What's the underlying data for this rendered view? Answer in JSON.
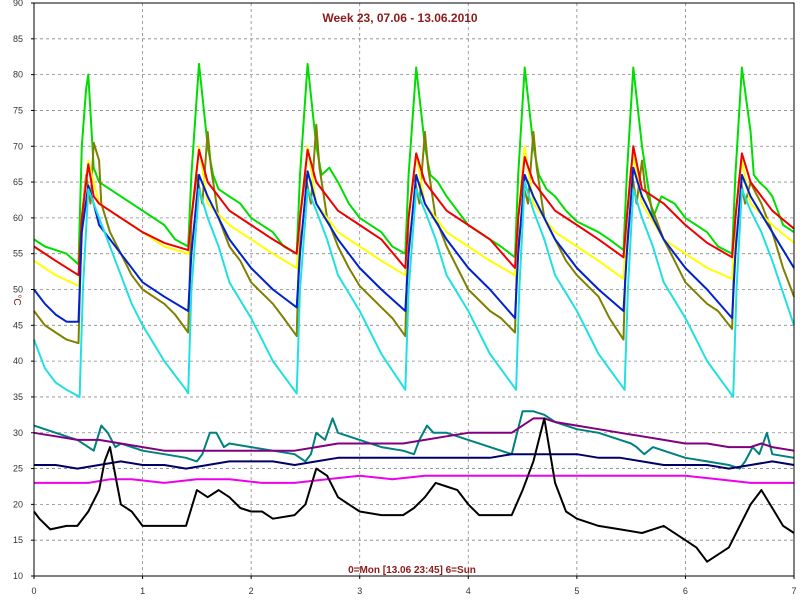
{
  "chart_data": {
    "type": "line",
    "title": "Week 23, 07.06 - 13.06.2010",
    "ylabel": "°C",
    "xnote": "0=Mon [13.06 23:45] 6=Sun",
    "xlim": [
      0,
      7
    ],
    "ylim": [
      10,
      90
    ],
    "xticks": [
      0,
      1,
      2,
      3,
      4,
      5,
      6,
      7
    ],
    "yticks": [
      10,
      15,
      20,
      25,
      30,
      35,
      40,
      45,
      50,
      55,
      60,
      65,
      70,
      75,
      80,
      85,
      90
    ],
    "grid": true,
    "series": [
      {
        "color": "#00dd00",
        "x": [
          0,
          0.1,
          0.2,
          0.3,
          0.41,
          0.44,
          0.48,
          0.5,
          0.55,
          0.6,
          0.8,
          1.0,
          1.2,
          1.3,
          1.42,
          1.45,
          1.52,
          1.6,
          1.65,
          1.7,
          1.8,
          1.9,
          2.0,
          2.2,
          2.3,
          2.42,
          2.45,
          2.52,
          2.6,
          2.65,
          2.72,
          2.8,
          2.9,
          3.0,
          3.2,
          3.3,
          3.42,
          3.45,
          3.52,
          3.6,
          3.65,
          3.72,
          3.8,
          3.9,
          4.0,
          4.2,
          4.3,
          4.43,
          4.46,
          4.52,
          4.6,
          4.65,
          4.72,
          4.8,
          4.9,
          5.0,
          5.2,
          5.3,
          5.43,
          5.46,
          5.52,
          5.6,
          5.65,
          5.7,
          5.78,
          5.9,
          6.0,
          6.2,
          6.3,
          6.43,
          6.46,
          6.52,
          6.6,
          6.63,
          6.68,
          6.75,
          6.8,
          6.85,
          6.9,
          6.95,
          7.0
        ],
        "y": [
          57,
          56,
          55.5,
          55,
          53.5,
          70,
          78,
          80,
          67,
          65,
          63,
          61,
          59,
          57,
          56,
          66,
          81.5,
          70,
          66,
          64,
          63,
          62,
          60,
          58,
          56,
          55,
          66,
          81.5,
          70,
          66,
          67,
          65,
          62,
          60,
          58,
          56,
          55,
          66,
          81,
          70,
          66,
          65,
          63,
          61,
          59,
          57,
          56,
          54.5,
          66,
          81,
          70,
          66,
          64,
          63,
          61,
          59.5,
          58,
          57,
          55.5,
          66,
          81,
          70,
          65,
          60,
          63,
          62,
          60,
          58,
          56,
          55,
          66,
          81,
          72,
          66,
          65,
          64,
          63,
          61,
          59,
          58.5,
          58
        ]
      },
      {
        "color": "#808000",
        "x": [
          0,
          0.1,
          0.2,
          0.3,
          0.41,
          0.44,
          0.48,
          0.52,
          0.55,
          0.6,
          0.62,
          0.7,
          0.8,
          0.9,
          1.0,
          1.2,
          1.3,
          1.42,
          1.45,
          1.5,
          1.55,
          1.6,
          1.63,
          1.7,
          1.8,
          1.9,
          2.0,
          2.2,
          2.3,
          2.42,
          2.45,
          2.5,
          2.55,
          2.6,
          2.63,
          2.7,
          2.8,
          2.9,
          3.0,
          3.2,
          3.3,
          3.42,
          3.45,
          3.5,
          3.55,
          3.6,
          3.63,
          3.7,
          3.8,
          3.9,
          4.0,
          4.2,
          4.3,
          4.43,
          4.46,
          4.5,
          4.55,
          4.6,
          4.63,
          4.7,
          4.8,
          4.9,
          5.0,
          5.2,
          5.3,
          5.43,
          5.46,
          5.5,
          5.55,
          5.6,
          5.63,
          5.7,
          5.8,
          5.9,
          6.0,
          6.2,
          6.3,
          6.43,
          6.46,
          6.5,
          6.55,
          6.6,
          6.63,
          6.7,
          6.8,
          6.9,
          6.95,
          7.0
        ],
        "y": [
          47,
          45,
          44,
          43,
          42.5,
          60,
          66,
          62,
          70.5,
          68,
          62,
          58,
          55,
          52,
          50,
          48,
          46.5,
          44,
          60,
          66,
          62,
          72,
          67,
          60,
          56,
          54,
          51,
          48,
          46,
          43.5,
          60,
          66,
          62,
          73,
          67,
          60,
          56,
          53,
          50.5,
          47.5,
          46,
          43.5,
          60,
          66,
          62,
          72,
          67,
          60,
          56,
          53,
          50,
          47,
          46,
          44,
          60,
          65,
          62,
          72,
          67,
          60,
          57,
          54,
          52,
          49,
          46,
          43,
          60,
          67,
          62,
          68,
          64,
          61,
          57,
          54,
          51,
          48,
          47,
          44.5,
          60,
          66,
          62,
          65,
          64,
          62,
          58,
          53,
          51,
          49
        ]
      },
      {
        "color": "#ffff00",
        "x": [
          0,
          0.2,
          0.41,
          0.44,
          0.5,
          0.6,
          0.8,
          1.0,
          1.2,
          1.42,
          1.45,
          1.52,
          1.6,
          1.8,
          2.0,
          2.2,
          2.42,
          2.45,
          2.52,
          2.6,
          2.8,
          3.0,
          3.2,
          3.42,
          3.45,
          3.52,
          3.6,
          3.8,
          4.0,
          4.2,
          4.43,
          4.46,
          4.52,
          4.6,
          4.8,
          5.0,
          5.2,
          5.43,
          5.46,
          5.52,
          5.6,
          5.8,
          6.0,
          6.2,
          6.43,
          6.46,
          6.52,
          6.6,
          6.8,
          7.0
        ],
        "y": [
          54,
          52,
          50.5,
          60,
          68,
          62,
          60,
          58,
          56,
          55,
          60,
          70,
          62,
          59,
          57,
          55,
          53,
          60,
          70,
          62,
          58,
          56,
          54,
          52,
          60,
          69,
          62,
          58,
          56,
          54,
          52,
          60,
          70,
          62,
          58,
          56,
          54,
          51.5,
          60,
          69,
          62,
          57,
          55,
          53,
          51.5,
          60,
          68,
          62,
          59,
          56.5
        ]
      },
      {
        "color": "#ee0000",
        "x": [
          0,
          0.2,
          0.41,
          0.44,
          0.5,
          0.55,
          0.6,
          0.8,
          1.0,
          1.2,
          1.42,
          1.45,
          1.52,
          1.6,
          1.8,
          2.0,
          2.2,
          2.42,
          2.45,
          2.52,
          2.6,
          2.8,
          3.0,
          3.2,
          3.42,
          3.45,
          3.52,
          3.6,
          3.8,
          4.0,
          4.2,
          4.43,
          4.46,
          4.52,
          4.6,
          4.8,
          5.0,
          5.2,
          5.43,
          5.46,
          5.52,
          5.6,
          5.8,
          6.0,
          6.2,
          6.43,
          6.46,
          6.52,
          6.6,
          6.8,
          7.0
        ],
        "y": [
          56,
          54,
          52,
          60,
          67.5,
          63,
          62,
          60,
          58,
          56.5,
          55.5,
          60,
          69.5,
          65,
          61,
          59,
          57,
          55,
          60,
          69.5,
          65,
          61,
          59,
          57,
          53,
          60,
          69,
          65,
          61,
          59,
          57,
          53,
          60,
          68.5,
          65,
          61,
          59,
          57,
          54.5,
          60,
          70,
          64,
          62,
          59,
          56.5,
          54.5,
          60,
          69,
          65,
          61,
          58.5
        ]
      },
      {
        "color": "#0022cc",
        "x": [
          0,
          0.1,
          0.2,
          0.3,
          0.41,
          0.44,
          0.5,
          0.55,
          0.6,
          0.8,
          1.0,
          1.2,
          1.42,
          1.45,
          1.52,
          1.6,
          1.8,
          2.0,
          2.2,
          2.42,
          2.45,
          2.52,
          2.6,
          2.8,
          3.0,
          3.2,
          3.42,
          3.45,
          3.52,
          3.6,
          3.8,
          4.0,
          4.2,
          4.43,
          4.46,
          4.52,
          4.6,
          4.8,
          5.0,
          5.2,
          5.43,
          5.46,
          5.52,
          5.6,
          5.8,
          6.0,
          6.2,
          6.43,
          6.46,
          6.52,
          6.6,
          6.8,
          7.0
        ],
        "y": [
          50,
          48,
          46.5,
          45.5,
          45.5,
          58,
          64.5,
          62,
          59,
          55,
          51,
          49,
          47,
          55,
          66,
          63,
          57,
          53,
          50,
          47.5,
          55,
          66.5,
          62,
          57,
          53,
          50,
          47,
          55,
          66,
          62,
          57,
          53,
          50,
          46,
          55,
          66,
          63,
          57,
          53,
          50,
          47,
          55,
          67,
          63,
          57,
          53,
          50,
          46,
          55,
          66,
          63,
          58,
          53
        ]
      },
      {
        "color": "#22e0e0",
        "x": [
          0,
          0.1,
          0.2,
          0.3,
          0.42,
          0.45,
          0.5,
          0.6,
          0.7,
          0.8,
          0.9,
          1.0,
          1.2,
          1.4,
          1.42,
          1.45,
          1.52,
          1.6,
          1.7,
          1.8,
          2.0,
          2.2,
          2.42,
          2.45,
          2.52,
          2.6,
          2.7,
          2.8,
          3.0,
          3.2,
          3.42,
          3.45,
          3.52,
          3.6,
          3.7,
          3.8,
          4.0,
          4.2,
          4.44,
          4.47,
          4.52,
          4.6,
          4.7,
          4.8,
          5.0,
          5.2,
          5.44,
          5.47,
          5.52,
          5.6,
          5.7,
          5.8,
          6.0,
          6.2,
          6.44,
          6.47,
          6.52,
          6.6,
          6.7,
          6.8,
          7.0
        ],
        "y": [
          43,
          39,
          37,
          36,
          35,
          50,
          64,
          60,
          56,
          52,
          48,
          45,
          40,
          36,
          35.5,
          50,
          64,
          60,
          56,
          51,
          46,
          40,
          35.5,
          50,
          64,
          61,
          57,
          52,
          47,
          41,
          36,
          50,
          64,
          61,
          57,
          52,
          47,
          41,
          36,
          50,
          65,
          61,
          57,
          52,
          47,
          41,
          36,
          50,
          64,
          60,
          56,
          51,
          46,
          40,
          35,
          50,
          64,
          61,
          58,
          54,
          45
        ]
      },
      {
        "color": "#008080",
        "x": [
          0,
          0.2,
          0.4,
          0.5,
          0.55,
          0.62,
          0.68,
          0.75,
          0.8,
          0.9,
          1.0,
          1.2,
          1.4,
          1.5,
          1.55,
          1.62,
          1.68,
          1.75,
          1.8,
          2.0,
          2.2,
          2.4,
          2.5,
          2.55,
          2.6,
          2.68,
          2.75,
          2.8,
          3.0,
          3.2,
          3.4,
          3.5,
          3.55,
          3.62,
          3.68,
          3.8,
          4.0,
          4.2,
          4.4,
          4.45,
          4.5,
          4.6,
          4.7,
          4.8,
          5.0,
          5.2,
          5.4,
          5.5,
          5.55,
          5.62,
          5.7,
          5.8,
          6.0,
          6.2,
          6.4,
          6.5,
          6.55,
          6.62,
          6.68,
          6.75,
          6.8,
          7.0
        ],
        "y": [
          31,
          30,
          29,
          28,
          27.5,
          31,
          30,
          28,
          28.5,
          28,
          27.5,
          27,
          26.5,
          26,
          27,
          30,
          30,
          28,
          28.5,
          28,
          27.5,
          27,
          26,
          27,
          30,
          29,
          32,
          30,
          29,
          28,
          27.5,
          27,
          29,
          31,
          30,
          30,
          29,
          28,
          27,
          30,
          33,
          33,
          32.5,
          31.5,
          30.5,
          30,
          29,
          28.5,
          28,
          27,
          28,
          27.5,
          26.5,
          26,
          25.5,
          25,
          26,
          28,
          27,
          30,
          27,
          26.5
        ]
      },
      {
        "color": "#800080",
        "x": [
          0,
          0.2,
          0.4,
          0.6,
          0.8,
          1.0,
          1.2,
          1.4,
          1.6,
          1.8,
          2.0,
          2.2,
          2.4,
          2.6,
          2.8,
          3.0,
          3.2,
          3.4,
          3.6,
          3.8,
          4.0,
          4.2,
          4.4,
          4.5,
          4.6,
          4.7,
          4.8,
          5.0,
          5.2,
          5.4,
          5.6,
          5.8,
          6.0,
          6.2,
          6.4,
          6.6,
          6.7,
          6.8,
          7.0
        ],
        "y": [
          30,
          29.5,
          29,
          29,
          28.5,
          28,
          27.5,
          27.5,
          27.5,
          27.5,
          27.5,
          27.5,
          27.5,
          28,
          28.5,
          28.5,
          28.5,
          28.5,
          29,
          29.5,
          30,
          30,
          30,
          31,
          32,
          32,
          31.5,
          31,
          30.5,
          30,
          29.5,
          29,
          28.5,
          28.5,
          28,
          28,
          28.5,
          28,
          27.5
        ]
      },
      {
        "color": "#000066",
        "x": [
          0,
          0.2,
          0.4,
          0.6,
          0.8,
          1.0,
          1.2,
          1.4,
          1.6,
          1.8,
          2.0,
          2.2,
          2.4,
          2.6,
          2.8,
          3.0,
          3.2,
          3.4,
          3.6,
          3.8,
          4.0,
          4.2,
          4.4,
          4.6,
          4.8,
          5.0,
          5.2,
          5.4,
          5.6,
          5.8,
          6.0,
          6.2,
          6.4,
          6.6,
          6.8,
          7.0
        ],
        "y": [
          25.5,
          25.5,
          25,
          25.5,
          26,
          25.5,
          25.5,
          25,
          25.5,
          26,
          26,
          26,
          25.5,
          26,
          26.5,
          26.5,
          26.5,
          26.5,
          26.5,
          26.5,
          26.5,
          26.5,
          27,
          27,
          27,
          27,
          26.5,
          26.5,
          26,
          25.5,
          25.5,
          25.5,
          25,
          25.5,
          26,
          25.5
        ]
      },
      {
        "color": "#ee00ee",
        "x": [
          0,
          0.3,
          0.5,
          0.7,
          0.9,
          1.2,
          1.5,
          1.8,
          2.1,
          2.4,
          2.7,
          3.0,
          3.3,
          3.6,
          3.9,
          4.2,
          4.5,
          4.8,
          5.1,
          5.4,
          5.7,
          6.0,
          6.3,
          6.6,
          6.9,
          7.0
        ],
        "y": [
          23,
          23,
          23,
          23.5,
          23.5,
          23,
          23.5,
          23.5,
          23,
          23,
          23.5,
          24,
          23.5,
          24,
          24,
          24,
          24,
          24,
          24,
          24,
          24,
          24,
          23.5,
          23,
          23,
          23
        ]
      },
      {
        "color": "#000000",
        "x": [
          0,
          0.05,
          0.15,
          0.3,
          0.4,
          0.5,
          0.6,
          0.65,
          0.7,
          0.75,
          0.8,
          0.9,
          1.0,
          1.2,
          1.4,
          1.5,
          1.6,
          1.7,
          1.8,
          1.9,
          2.0,
          2.1,
          2.2,
          2.4,
          2.5,
          2.6,
          2.7,
          2.8,
          2.9,
          3.0,
          3.2,
          3.4,
          3.5,
          3.6,
          3.7,
          3.8,
          3.9,
          4.0,
          4.1,
          4.2,
          4.4,
          4.5,
          4.6,
          4.7,
          4.8,
          4.9,
          5.0,
          5.2,
          5.4,
          5.6,
          5.8,
          6.0,
          6.1,
          6.2,
          6.4,
          6.5,
          6.6,
          6.7,
          6.8,
          6.9,
          7.0
        ],
        "y": [
          19,
          18,
          16.5,
          17,
          17,
          19,
          22,
          26,
          28,
          24,
          20,
          19,
          17,
          17,
          17,
          22,
          21,
          22,
          21,
          19.5,
          19,
          19,
          18,
          18.5,
          20,
          25,
          24,
          21,
          20,
          19,
          18.5,
          18.5,
          19.5,
          21,
          23,
          22.5,
          22,
          20,
          18.5,
          18.5,
          18.5,
          22,
          26,
          32,
          23,
          19,
          18,
          17,
          16.5,
          16,
          17,
          15,
          14,
          12,
          14,
          17,
          20,
          22,
          19.5,
          17,
          16
        ]
      }
    ]
  }
}
